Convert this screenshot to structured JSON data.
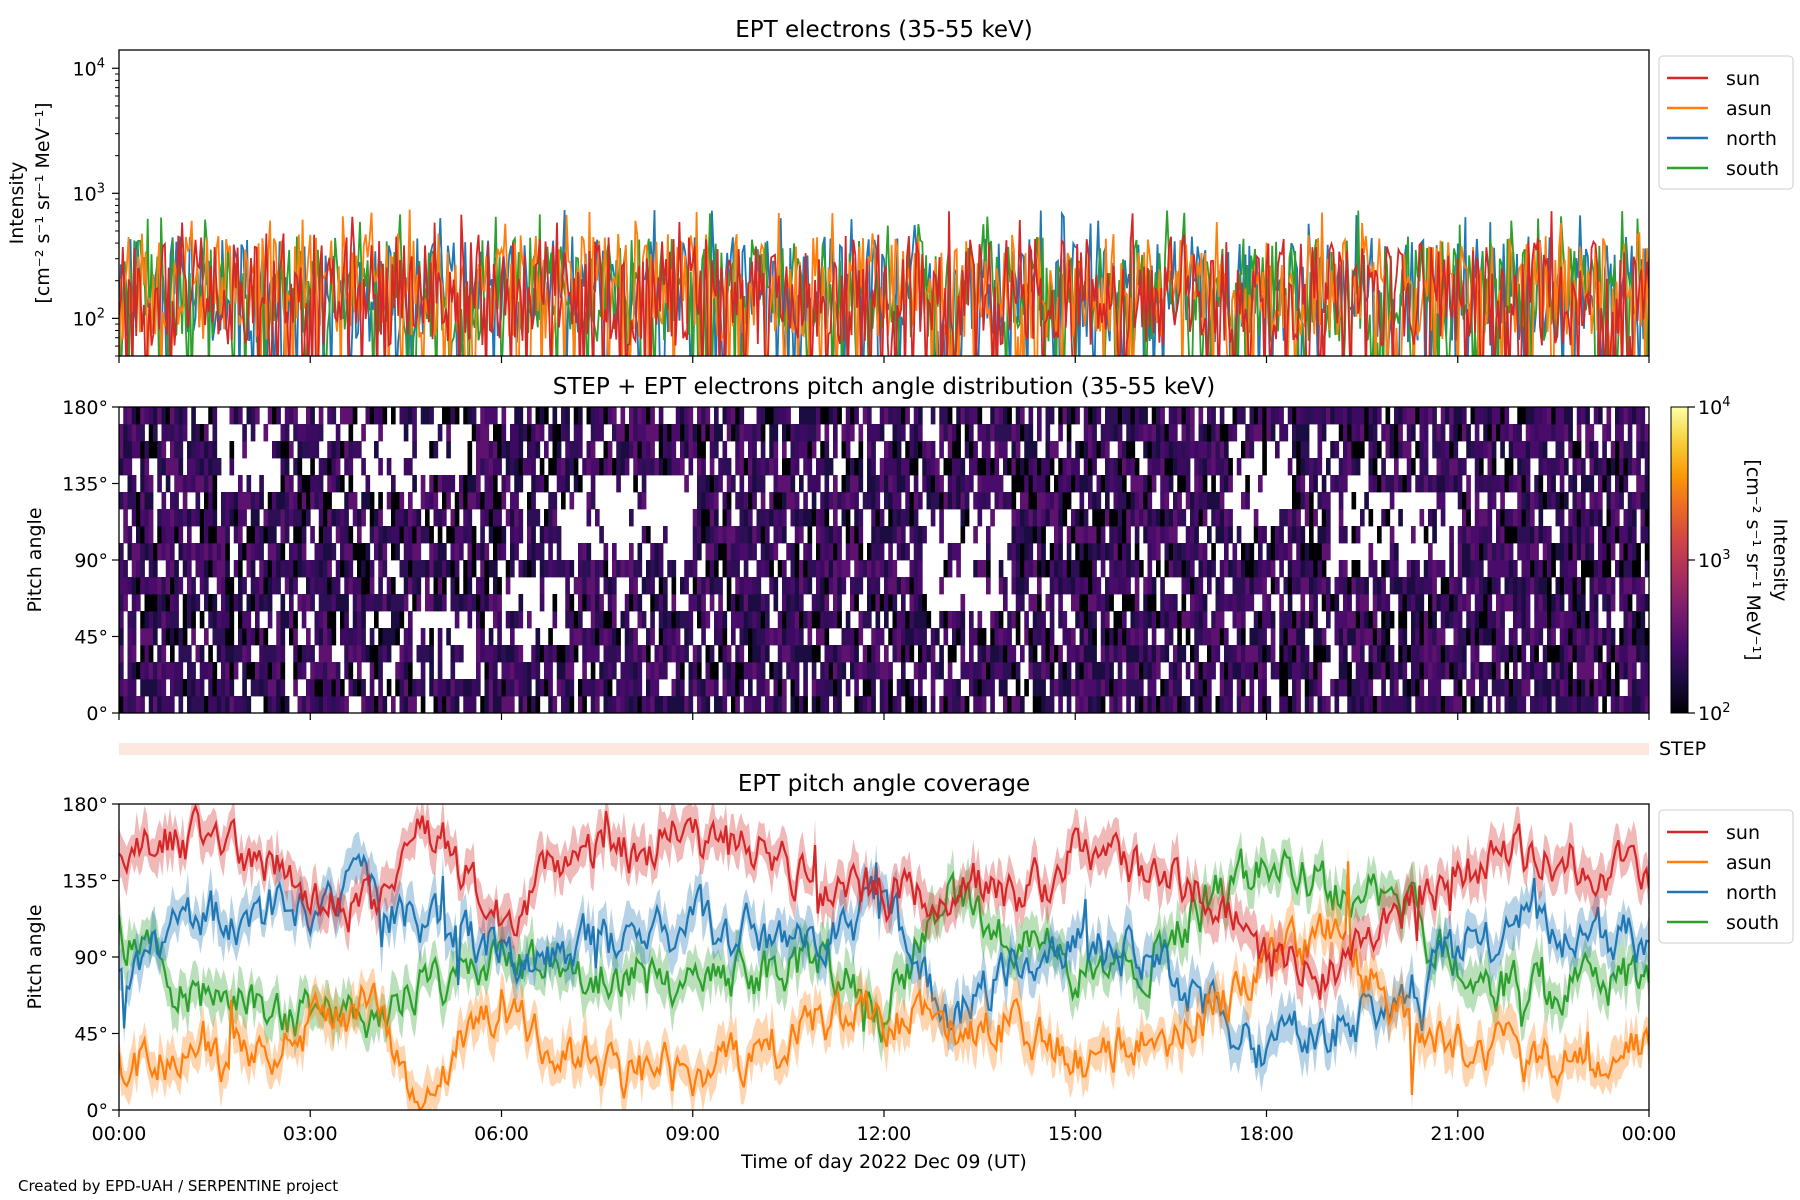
{
  "credit": "Created by EPD-UAH / SERPENTINE project",
  "chart_data": [
    {
      "id": "intensity",
      "type": "line",
      "title": "EPT electrons (35-55 keV)",
      "ylabel_line1": "Intensity",
      "ylabel_line2": "[cm⁻² s⁻¹ sr⁻¹ MeV⁻¹]",
      "yscale": "log",
      "ylim": [
        50,
        14000
      ],
      "xlim_hours": [
        0,
        24
      ],
      "yticks": [
        {
          "value": 100,
          "label": "10",
          "exp": "2"
        },
        {
          "value": 1000,
          "label": "10",
          "exp": "3"
        },
        {
          "value": 10000,
          "label": "10",
          "exp": "4"
        }
      ],
      "legend_position": "outside-right-top",
      "series": [
        {
          "name": "sun",
          "color": "#d62728",
          "typical": 170,
          "spread": 0.9,
          "peak": 760
        },
        {
          "name": "asun",
          "color": "#ff7f0e",
          "typical": 180,
          "spread": 0.85,
          "peak": 750
        },
        {
          "name": "north",
          "color": "#1f77b4",
          "typical": 170,
          "spread": 0.85,
          "peak": 740
        },
        {
          "name": "south",
          "color": "#2ca02c",
          "typical": 170,
          "spread": 0.85,
          "peak": 730
        }
      ]
    },
    {
      "id": "pad",
      "type": "heatmap",
      "title": "STEP + EPT electrons pitch angle distribution (35-55 keV)",
      "ylabel": "Pitch angle",
      "ylim_deg": [
        0,
        180
      ],
      "yticks": [
        "0°",
        "45°",
        "90°",
        "135°",
        "180°"
      ],
      "colorbar": {
        "label_line1": "Intensity",
        "label_line2": "[cm⁻² s⁻¹ sr⁻¹ MeV⁻¹]",
        "scale": "log",
        "range": [
          100,
          10000
        ],
        "ticks": [
          {
            "value": 100,
            "label": "10",
            "exp": "2"
          },
          {
            "value": 1000,
            "label": "10",
            "exp": "3"
          },
          {
            "value": 10000,
            "label": "10",
            "exp": "4"
          }
        ],
        "colormap": [
          "#000004",
          "#1b0c41",
          "#4a0c6b",
          "#781c6d",
          "#a52c60",
          "#cf4446",
          "#ed6925",
          "#fb9b06",
          "#f7d13d",
          "#fcffa4"
        ]
      },
      "value_range": [
        100,
        300
      ]
    },
    {
      "id": "step",
      "type": "bar",
      "label": "STEP",
      "color": "#fde8e0"
    },
    {
      "id": "coverage",
      "type": "area",
      "title": "EPT pitch angle coverage",
      "ylabel": "Pitch angle",
      "ylim_deg": [
        0,
        180
      ],
      "yticks": [
        "0°",
        "45°",
        "90°",
        "135°",
        "180°"
      ],
      "xlabel": "Time of day 2022 Dec 09 (UT)",
      "xticks": [
        "00:00",
        "03:00",
        "06:00",
        "09:00",
        "12:00",
        "15:00",
        "18:00",
        "21:00",
        "00:00"
      ],
      "legend_position": "outside-right-top",
      "series": [
        {
          "name": "sun",
          "color": "#d62728",
          "hours": [
            0,
            1,
            2,
            3,
            4,
            4.5,
            5,
            6,
            7,
            8,
            9,
            10,
            11,
            12,
            13,
            14,
            15,
            16,
            17,
            18,
            19,
            20,
            21,
            22,
            23,
            24
          ],
          "degrees": [
            150,
            158,
            148,
            130,
            118,
            165,
            160,
            110,
            150,
            155,
            160,
            150,
            130,
            125,
            135,
            125,
            150,
            140,
            130,
            90,
            80,
            120,
            140,
            150,
            145,
            140
          ]
        },
        {
          "name": "asun",
          "color": "#ff7f0e",
          "hours": [
            0,
            1,
            2,
            3,
            4,
            4.5,
            5,
            6,
            7,
            8,
            9,
            10,
            11,
            12,
            13,
            14,
            15,
            16,
            17,
            18,
            19,
            20,
            21,
            22,
            23,
            24
          ],
          "degrees": [
            30,
            25,
            32,
            48,
            62,
            20,
            20,
            68,
            28,
            22,
            20,
            30,
            50,
            55,
            48,
            55,
            30,
            40,
            50,
            90,
            100,
            60,
            40,
            30,
            35,
            40
          ]
        },
        {
          "name": "north",
          "color": "#1f77b4",
          "hours": [
            0,
            1,
            2,
            3,
            4,
            4.5,
            5,
            6,
            7,
            8,
            9,
            10,
            11,
            12,
            13,
            14,
            15,
            16,
            17,
            18,
            19,
            20,
            21,
            22,
            23,
            24
          ],
          "degrees": [
            75,
            110,
            115,
            125,
            130,
            110,
            110,
            95,
            95,
            100,
            110,
            100,
            90,
            125,
            50,
            80,
            95,
            95,
            60,
            35,
            50,
            60,
            95,
            110,
            105,
            100
          ]
        },
        {
          "name": "south",
          "color": "#2ca02c",
          "hours": [
            0,
            1,
            2,
            3,
            4,
            4.5,
            5,
            6,
            7,
            8,
            9,
            10,
            11,
            12,
            13,
            14,
            15,
            16,
            17,
            18,
            19,
            20,
            21,
            22,
            23,
            24
          ],
          "degrees": [
            105,
            70,
            65,
            55,
            50,
            70,
            70,
            85,
            85,
            80,
            70,
            80,
            90,
            55,
            130,
            100,
            85,
            85,
            120,
            145,
            130,
            120,
            85,
            70,
            75,
            80
          ]
        }
      ]
    }
  ]
}
